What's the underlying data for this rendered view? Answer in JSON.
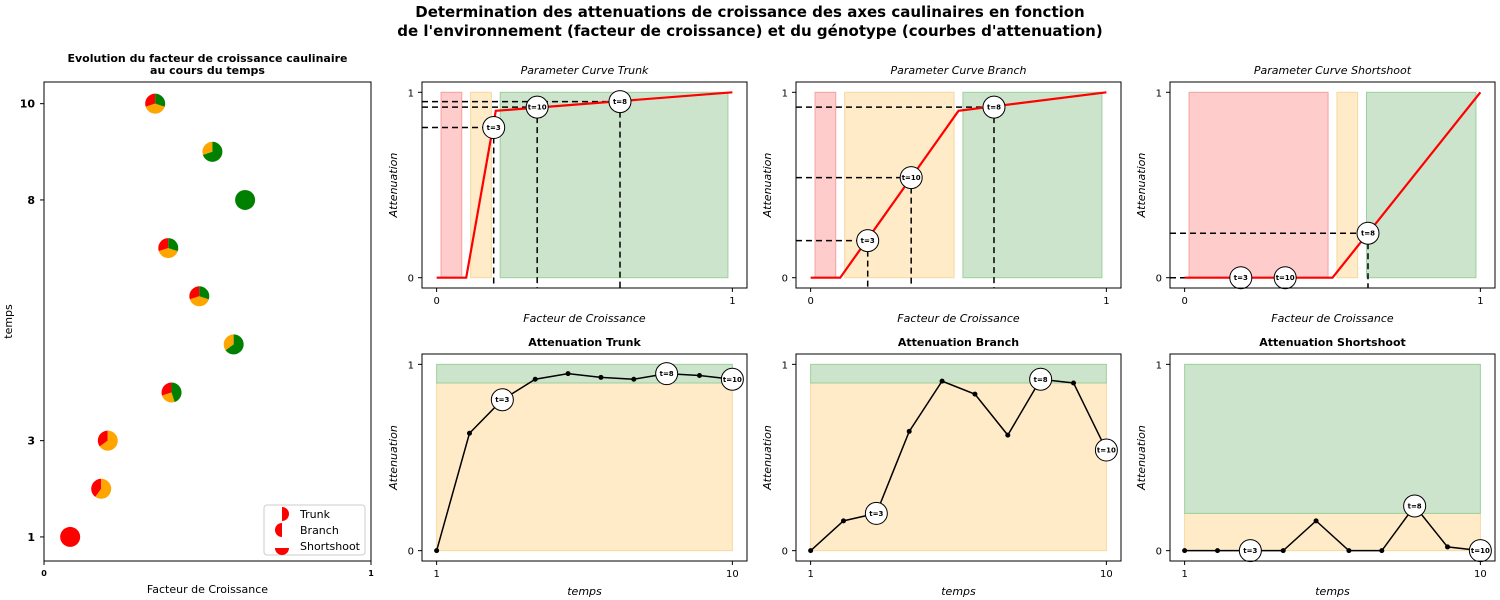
{
  "figure": {
    "suptitle_line1": "Determination des attenuations de croissance des axes caulinaires en fonction",
    "suptitle_line2": "de l'environnement (facteur de croissance) et du génotype (courbes d'attenuation)"
  },
  "colors": {
    "trunk": "#ff0000",
    "branch": "#ffa500",
    "shortshoot": "#008000",
    "zone_red": "#ffcccc",
    "zone_orange": "#ffebc8",
    "zone_green": "#cce4cc",
    "curve": "#ff0000"
  },
  "chart_data": [
    {
      "id": "scatter",
      "type": "scatter",
      "title_line1": "Evolution du facteur de croissance caulinaire",
      "title_line2": "au cours du temps",
      "xlabel": "Facteur de Croissance",
      "ylabel": "temps",
      "xlim": [
        0,
        1
      ],
      "ylim": [
        0.5,
        10.45
      ],
      "xticks": [
        "0",
        "1"
      ],
      "yticks": [
        "1",
        "3",
        "8",
        "10"
      ],
      "ytick_values": [
        1,
        3,
        8,
        10
      ],
      "points": [
        {
          "t": 1,
          "x": 0.08,
          "fractions": {
            "trunk": 1.0,
            "branch": 0.0,
            "shortshoot": 0.0
          }
        },
        {
          "t": 2,
          "x": 0.175,
          "fractions": {
            "trunk": 0.4,
            "branch": 0.6,
            "shortshoot": 0.0
          }
        },
        {
          "t": 3,
          "x": 0.195,
          "fractions": {
            "trunk": 0.35,
            "branch": 0.65,
            "shortshoot": 0.0
          }
        },
        {
          "t": 4,
          "x": 0.39,
          "fractions": {
            "trunk": 0.3,
            "branch": 0.25,
            "shortshoot": 0.45
          }
        },
        {
          "t": 5,
          "x": 0.58,
          "fractions": {
            "trunk": 0.0,
            "branch": 0.35,
            "shortshoot": 0.65
          }
        },
        {
          "t": 6,
          "x": 0.475,
          "fractions": {
            "trunk": 0.3,
            "branch": 0.4,
            "shortshoot": 0.3
          }
        },
        {
          "t": 7,
          "x": 0.38,
          "fractions": {
            "trunk": 0.3,
            "branch": 0.4,
            "shortshoot": 0.3
          }
        },
        {
          "t": 8,
          "x": 0.615,
          "fractions": {
            "trunk": 0.0,
            "branch": 0.0,
            "shortshoot": 1.0
          }
        },
        {
          "t": 9,
          "x": 0.515,
          "fractions": {
            "trunk": 0.0,
            "branch": 0.3,
            "shortshoot": 0.7
          }
        },
        {
          "t": 10,
          "x": 0.34,
          "fractions": {
            "trunk": 0.3,
            "branch": 0.4,
            "shortshoot": 0.3
          }
        }
      ],
      "legend": {
        "placement": "lower-right",
        "entries": [
          "Trunk",
          "Branch",
          "Shortshoot"
        ]
      }
    },
    {
      "id": "param_trunk",
      "type": "line",
      "title": "Parameter Curve Trunk",
      "xlabel": "Facteur de Croissance",
      "ylabel": "Attenuation",
      "xlim": [
        0,
        1
      ],
      "ylim": [
        0,
        1
      ],
      "xticks": [
        "0",
        "1"
      ],
      "yticks": [
        "0",
        "1"
      ],
      "zones": [
        {
          "color": "red",
          "x0": 0.015,
          "x1": 0.085
        },
        {
          "color": "orange",
          "x0": 0.115,
          "x1": 0.185
        },
        {
          "color": "green",
          "x0": 0.215,
          "x1": 0.985
        }
      ],
      "curve": {
        "x": [
          0,
          0.1,
          0.2,
          1.0
        ],
        "y": [
          0,
          0,
          0.9,
          1.0
        ]
      },
      "markers": [
        {
          "label": "t=3",
          "x": 0.193,
          "y": 0.81
        },
        {
          "label": "t=10",
          "x": 0.34,
          "y": 0.92
        },
        {
          "label": "t=8",
          "x": 0.62,
          "y": 0.95
        }
      ]
    },
    {
      "id": "param_branch",
      "type": "line",
      "title": "Parameter Curve Branch",
      "xlabel": "Facteur de Croissance",
      "ylabel": "Attenuation",
      "xlim": [
        0,
        1
      ],
      "ylim": [
        0,
        1
      ],
      "xticks": [
        "0",
        "1"
      ],
      "yticks": [
        "0",
        "1"
      ],
      "zones": [
        {
          "color": "red",
          "x0": 0.015,
          "x1": 0.085
        },
        {
          "color": "orange",
          "x0": 0.115,
          "x1": 0.485
        },
        {
          "color": "green",
          "x0": 0.515,
          "x1": 0.985
        }
      ],
      "curve": {
        "x": [
          0,
          0.1,
          0.5,
          1.0
        ],
        "y": [
          0,
          0,
          0.9,
          1.0
        ]
      },
      "markers": [
        {
          "label": "t=3",
          "x": 0.193,
          "y": 0.2
        },
        {
          "label": "t=10",
          "x": 0.34,
          "y": 0.54
        },
        {
          "label": "t=8",
          "x": 0.62,
          "y": 0.92
        }
      ]
    },
    {
      "id": "param_shortshoot",
      "type": "line",
      "title": "Parameter Curve Shortshoot",
      "xlabel": "Facteur de Croissance",
      "ylabel": "Attenuation",
      "xlim": [
        0,
        1
      ],
      "ylim": [
        0,
        1
      ],
      "xticks": [
        "0",
        "1"
      ],
      "yticks": [
        "0",
        "1"
      ],
      "zones": [
        {
          "color": "red",
          "x0": 0.015,
          "x1": 0.485
        },
        {
          "color": "orange",
          "x0": 0.515,
          "x1": 0.585
        },
        {
          "color": "green",
          "x0": 0.615,
          "x1": 0.985
        }
      ],
      "curve": {
        "x": [
          0,
          0.5,
          1.0
        ],
        "y": [
          0,
          0,
          1.0
        ]
      },
      "markers": [
        {
          "label": "t=3",
          "x": 0.19,
          "y": 0.0
        },
        {
          "label": "t=10",
          "x": 0.34,
          "y": 0.0
        },
        {
          "label": "t=8",
          "x": 0.62,
          "y": 0.24
        }
      ]
    },
    {
      "id": "atten_trunk",
      "type": "line",
      "title": "Attenuation Trunk",
      "xlabel": "temps",
      "ylabel": "Attenuation",
      "xlim": [
        1,
        10
      ],
      "ylim": [
        0,
        1
      ],
      "xticks": [
        "1",
        "10"
      ],
      "yticks": [
        "0",
        "1"
      ],
      "bands": [
        {
          "color": "orange",
          "y0": 0,
          "y1": 0.9
        },
        {
          "color": "green",
          "y0": 0.9,
          "y1": 1.0
        }
      ],
      "x": [
        1,
        2,
        3,
        4,
        5,
        6,
        7,
        8,
        9,
        10
      ],
      "y": [
        0,
        0.63,
        0.81,
        0.92,
        0.95,
        0.93,
        0.92,
        0.95,
        0.94,
        0.92
      ],
      "markers": [
        {
          "label": "t=3",
          "x": 3,
          "y": 0.81
        },
        {
          "label": "t=8",
          "x": 8,
          "y": 0.95
        },
        {
          "label": "t=10",
          "x": 10,
          "y": 0.92
        }
      ]
    },
    {
      "id": "atten_branch",
      "type": "line",
      "title": "Attenuation Branch",
      "xlabel": "temps",
      "ylabel": "Attenuation",
      "xlim": [
        1,
        10
      ],
      "ylim": [
        0,
        1
      ],
      "xticks": [
        "1",
        "10"
      ],
      "yticks": [
        "0",
        "1"
      ],
      "bands": [
        {
          "color": "orange",
          "y0": 0,
          "y1": 0.9
        },
        {
          "color": "green",
          "y0": 0.9,
          "y1": 1.0
        }
      ],
      "x": [
        1,
        2,
        3,
        4,
        5,
        6,
        7,
        8,
        9,
        10
      ],
      "y": [
        0,
        0.16,
        0.2,
        0.64,
        0.91,
        0.84,
        0.62,
        0.92,
        0.9,
        0.54
      ],
      "markers": [
        {
          "label": "t=3",
          "x": 3,
          "y": 0.2
        },
        {
          "label": "t=8",
          "x": 8,
          "y": 0.92
        },
        {
          "label": "t=10",
          "x": 10,
          "y": 0.54
        }
      ]
    },
    {
      "id": "atten_shortshoot",
      "type": "line",
      "title": "Attenuation Shortshoot",
      "xlabel": "temps",
      "ylabel": "Attenuation",
      "xlim": [
        1,
        10
      ],
      "ylim": [
        0,
        1
      ],
      "xticks": [
        "1",
        "10"
      ],
      "yticks": [
        "0",
        "1"
      ],
      "bands": [
        {
          "color": "orange",
          "y0": 0,
          "y1": 0.2
        },
        {
          "color": "green",
          "y0": 0.2,
          "y1": 1.0
        }
      ],
      "x": [
        1,
        2,
        3,
        4,
        5,
        6,
        7,
        8,
        9,
        10
      ],
      "y": [
        0,
        0,
        0,
        0,
        0.16,
        0,
        0,
        0.24,
        0.02,
        0
      ],
      "markers": [
        {
          "label": "t=3",
          "x": 3,
          "y": 0
        },
        {
          "label": "t=8",
          "x": 8,
          "y": 0.24
        },
        {
          "label": "t=10",
          "x": 10,
          "y": 0
        }
      ]
    }
  ]
}
